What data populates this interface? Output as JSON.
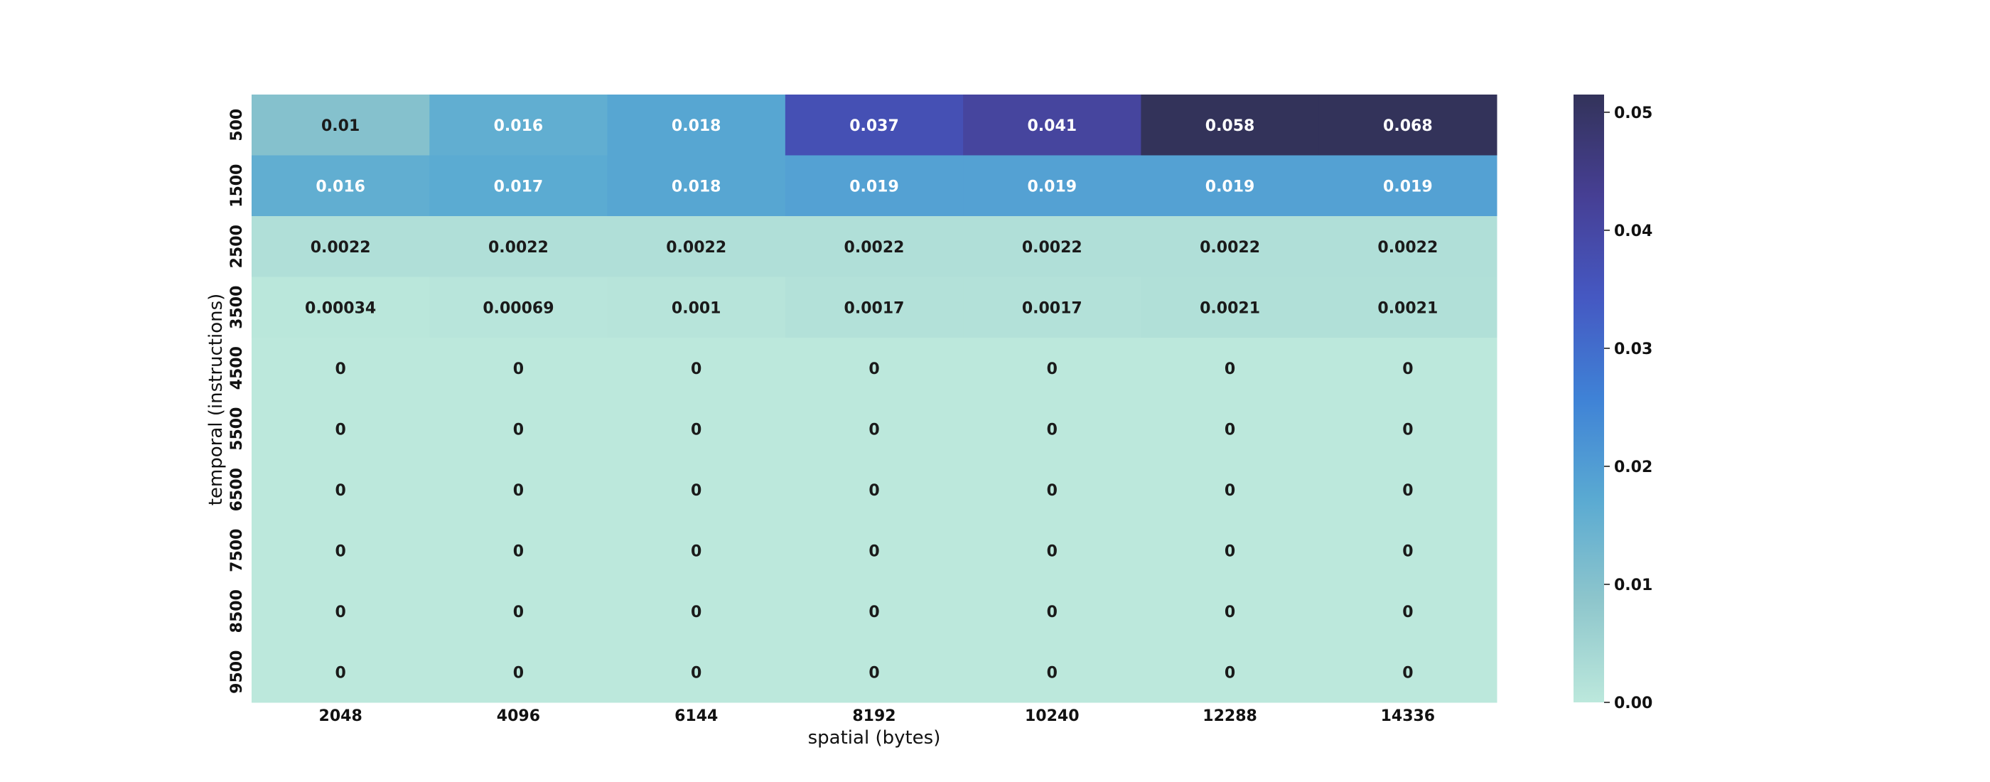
{
  "chart_data": {
    "type": "heatmap",
    "title": "",
    "xlabel": "spatial (bytes)",
    "ylabel": "temporal (instructions)",
    "x_categories": [
      "2048",
      "4096",
      "6144",
      "8192",
      "10240",
      "12288",
      "14336"
    ],
    "y_categories": [
      "500",
      "1500",
      "2500",
      "3500",
      "4500",
      "5500",
      "6500",
      "7500",
      "8500",
      "9500"
    ],
    "values": [
      [
        0.01,
        0.016,
        0.018,
        0.037,
        0.041,
        0.058,
        0.068
      ],
      [
        0.016,
        0.017,
        0.018,
        0.019,
        0.019,
        0.019,
        0.019
      ],
      [
        0.0022,
        0.0022,
        0.0022,
        0.0022,
        0.0022,
        0.0022,
        0.0022
      ],
      [
        0.00034,
        0.00069,
        0.001,
        0.0017,
        0.0017,
        0.0021,
        0.0021
      ],
      [
        0,
        0,
        0,
        0,
        0,
        0,
        0
      ],
      [
        0,
        0,
        0,
        0,
        0,
        0,
        0
      ],
      [
        0,
        0,
        0,
        0,
        0,
        0,
        0
      ],
      [
        0,
        0,
        0,
        0,
        0,
        0,
        0
      ],
      [
        0,
        0,
        0,
        0,
        0,
        0,
        0
      ],
      [
        0,
        0,
        0,
        0,
        0,
        0,
        0
      ]
    ],
    "cell_labels": [
      [
        "0.01",
        "0.016",
        "0.018",
        "0.037",
        "0.041",
        "0.058",
        "0.068"
      ],
      [
        "0.016",
        "0.017",
        "0.018",
        "0.019",
        "0.019",
        "0.019",
        "0.019"
      ],
      [
        "0.0022",
        "0.0022",
        "0.0022",
        "0.0022",
        "0.0022",
        "0.0022",
        "0.0022"
      ],
      [
        "0.00034",
        "0.00069",
        "0.001",
        "0.0017",
        "0.0017",
        "0.0021",
        "0.0021"
      ],
      [
        "0",
        "0",
        "0",
        "0",
        "0",
        "0",
        "0"
      ],
      [
        "0",
        "0",
        "0",
        "0",
        "0",
        "0",
        "0"
      ],
      [
        "0",
        "0",
        "0",
        "0",
        "0",
        "0",
        "0"
      ],
      [
        "0",
        "0",
        "0",
        "0",
        "0",
        "0",
        "0"
      ],
      [
        "0",
        "0",
        "0",
        "0",
        "0",
        "0",
        "0"
      ],
      [
        "0",
        "0",
        "0",
        "0",
        "0",
        "0",
        "0"
      ]
    ],
    "colorbar": {
      "vmin": 0.0,
      "vmax": 0.0515,
      "ticks": [
        0.0,
        0.01,
        0.02,
        0.03,
        0.04,
        0.05
      ],
      "tick_labels": [
        "0.00",
        "0.01",
        "0.02",
        "0.03",
        "0.04",
        "0.05"
      ],
      "colormap": [
        "#bce8dc",
        "#8ec6cc",
        "#5aaad2",
        "#3f82d6",
        "#4558c2",
        "#463f94",
        "#33335a"
      ]
    }
  }
}
